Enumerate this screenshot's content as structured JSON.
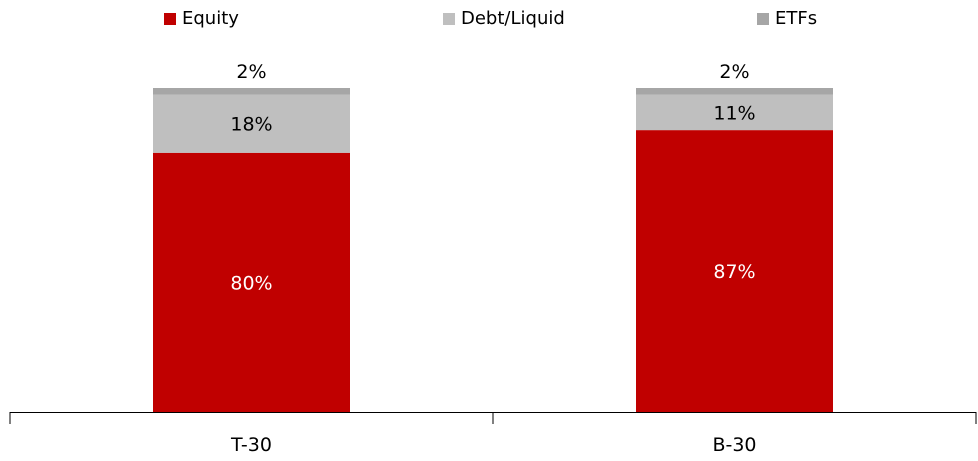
{
  "chart_data": {
    "type": "bar",
    "stacked": true,
    "categories": [
      "T-30",
      "B-30"
    ],
    "series": [
      {
        "name": "Equity",
        "values": [
          80,
          87
        ],
        "labels": [
          "80%",
          "87%"
        ],
        "color": "#c00000",
        "label_color": "#ffffff"
      },
      {
        "name": "Debt/Liquid",
        "values": [
          18,
          11
        ],
        "labels": [
          "18%",
          "11%"
        ],
        "color": "#bfbfbf",
        "label_color": "#000000"
      },
      {
        "name": "ETFs",
        "values": [
          2,
          2
        ],
        "labels": [
          "2%",
          "2%"
        ],
        "color": "#a6a6a6",
        "label_color": "#000000"
      }
    ],
    "ylim": [
      0,
      100
    ],
    "grid": false,
    "legend_position": "top"
  }
}
